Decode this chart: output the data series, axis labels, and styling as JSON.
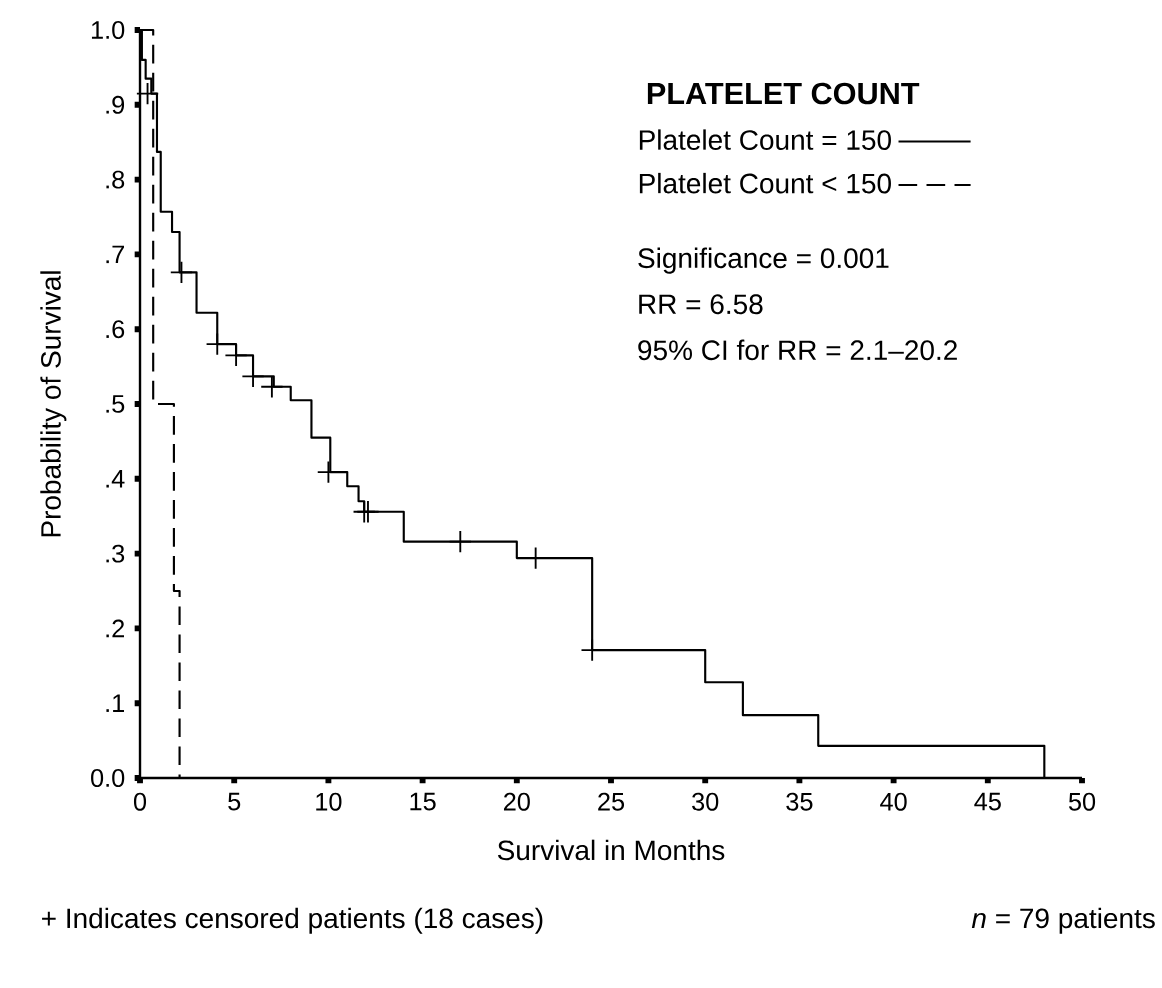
{
  "chart_data": {
    "type": "step",
    "title": "PLATELET COUNT",
    "xlabel": "Survival in Months",
    "ylabel": "Probability of Survival",
    "xlim": [
      0,
      50
    ],
    "ylim": [
      0,
      1
    ],
    "xticks": [
      0,
      5,
      10,
      15,
      20,
      25,
      30,
      35,
      40,
      45,
      50
    ],
    "yticks": [
      {
        "value": 0,
        "label": "0.0"
      },
      {
        "value": 0.1,
        "label": ".1"
      },
      {
        "value": 0.2,
        "label": ".2"
      },
      {
        "value": 0.3,
        "label": ".3"
      },
      {
        "value": 0.4,
        "label": ".4"
      },
      {
        "value": 0.5,
        "label": ".5"
      },
      {
        "value": 0.6,
        "label": ".6"
      },
      {
        "value": 0.7,
        "label": ".7"
      },
      {
        "value": 0.8,
        "label": ".8"
      },
      {
        "value": 0.9,
        "label": ".9"
      },
      {
        "value": 1,
        "label": "1.0"
      }
    ],
    "legend": "top right",
    "grid": false,
    "series": [
      {
        "name": "Platelet Count = 150",
        "color": "#000000",
        "line_style": "solid",
        "x": [
          0,
          0.1,
          0.3,
          0.6,
          0.9,
          1.1,
          1.7,
          2.1,
          3.0,
          4.1,
          5.1,
          6.0,
          7.1,
          8.0,
          9.1,
          10.1,
          11.0,
          11.6,
          11.9,
          14.0,
          20.0,
          24.0,
          30.0,
          32.0,
          36.0,
          48.0
        ],
        "values": [
          1.0,
          0.96,
          0.935,
          0.915,
          0.837,
          0.757,
          0.73,
          0.676,
          0.622,
          0.58,
          0.565,
          0.537,
          0.523,
          0.505,
          0.455,
          0.409,
          0.39,
          0.37,
          0.356,
          0.316,
          0.294,
          0.171,
          0.128,
          0.084,
          0.043,
          0
        ]
      },
      {
        "name": "Platelet Count < 150",
        "color": "#000000",
        "line_style": "dashed",
        "x": [
          0,
          0.7,
          1.8,
          2.1
        ],
        "values": [
          1.0,
          0.5,
          0.25,
          0
        ]
      },
      {
        "type": "scatter",
        "marker": "cross",
        "color": "#000000",
        "x": [
          0.4,
          2.2,
          4.1,
          5.1,
          6.0,
          7.0,
          10.0,
          11.9,
          12.1,
          17.0,
          21.0,
          24.0
        ],
        "values": [
          0.915,
          0.676,
          0.58,
          0.565,
          0.537,
          0.523,
          0.409,
          0.356,
          0.356,
          0.316,
          0.294,
          0.171
        ]
      }
    ],
    "annotations": [
      "Significance = 0.001",
      "RR = 6.58",
      "95% CI for RR = 2.1–20.2",
      "+ Indicates censored patients (18 cases)",
      "*n* = 79 patients"
    ]
  }
}
